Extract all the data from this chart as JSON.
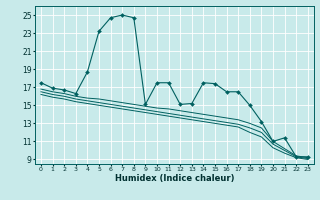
{
  "xlabel": "Humidex (Indice chaleur)",
  "background_color": "#c8eaea",
  "grid_color": "#ffffff",
  "line_color": "#006060",
  "xlim": [
    -0.5,
    23.5
  ],
  "ylim": [
    8.5,
    26.0
  ],
  "yticks": [
    9,
    11,
    13,
    15,
    17,
    19,
    21,
    23,
    25
  ],
  "xticks": [
    0,
    1,
    2,
    3,
    4,
    5,
    6,
    7,
    8,
    9,
    10,
    11,
    12,
    13,
    14,
    15,
    16,
    17,
    18,
    19,
    20,
    21,
    22,
    23
  ],
  "x": [
    0,
    1,
    2,
    3,
    4,
    5,
    6,
    7,
    8,
    9,
    10,
    11,
    12,
    13,
    14,
    15,
    16,
    17,
    18,
    19,
    20,
    21,
    22,
    23
  ],
  "line1": [
    17.5,
    16.9,
    16.7,
    16.3,
    18.7,
    23.2,
    24.7,
    25.0,
    24.7,
    15.1,
    17.5,
    17.5,
    15.1,
    15.2,
    17.5,
    17.4,
    16.5,
    16.5,
    15.0,
    13.2,
    11.0,
    11.4,
    9.3,
    9.3
  ],
  "line2": [
    16.8,
    16.5,
    16.3,
    16.0,
    15.8,
    15.7,
    15.5,
    15.3,
    15.1,
    14.9,
    14.7,
    14.6,
    14.4,
    14.2,
    14.0,
    13.8,
    13.6,
    13.4,
    13.0,
    12.5,
    11.0,
    10.2,
    9.4,
    9.2
  ],
  "line3": [
    16.5,
    16.2,
    16.0,
    15.7,
    15.5,
    15.3,
    15.1,
    14.9,
    14.7,
    14.5,
    14.3,
    14.1,
    13.9,
    13.7,
    13.5,
    13.3,
    13.1,
    12.9,
    12.5,
    12.0,
    10.7,
    10.0,
    9.3,
    9.1
  ],
  "line4": [
    16.2,
    15.9,
    15.7,
    15.4,
    15.2,
    15.0,
    14.8,
    14.6,
    14.4,
    14.2,
    14.0,
    13.8,
    13.6,
    13.4,
    13.2,
    13.0,
    12.8,
    12.6,
    12.0,
    11.5,
    10.3,
    9.7,
    9.2,
    9.0
  ]
}
